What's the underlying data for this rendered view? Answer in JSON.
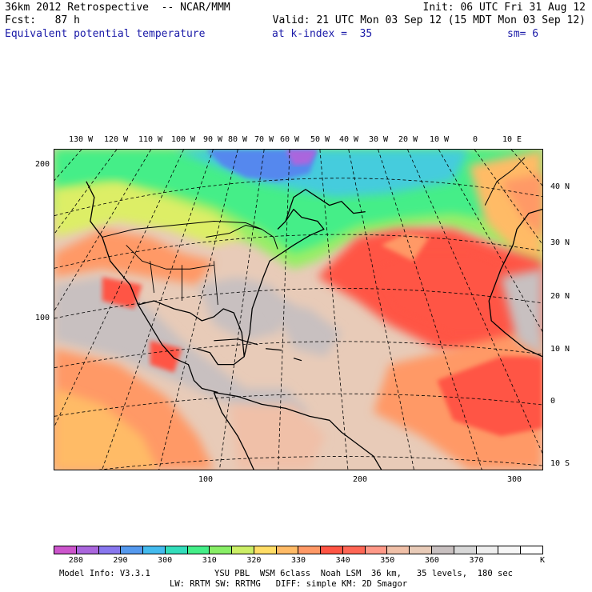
{
  "header": {
    "line1_left": "36km 2012 Retrospective  -- NCAR/MMM",
    "line1_right": "Init: 06 UTC Fri 31 Aug 12",
    "line2_fcst": "Fcst:   87 h",
    "line2_valid": "Valid: 21 UTC Mon 03 Sep 12 (15 MDT Mon 03 Sep 12)",
    "line3_field": "Equivalent potential temperature",
    "line3_level": "at k-index =  35",
    "line3_sm": "sm= 6"
  },
  "axes": {
    "top_lon_labels": [
      "130 W",
      "120 W",
      "110 W",
      "100 W",
      "90 W",
      "80 W",
      "70 W",
      "60 W",
      "50 W",
      "40 W",
      "30 W",
      "20 W",
      "10 W",
      "0",
      "10 E"
    ],
    "right_lat_labels": [
      "40 N",
      "30 N",
      "20 N",
      "10 N",
      "0",
      "10 S"
    ],
    "left_grid_labels": [
      "200",
      "100"
    ],
    "bottom_grid_labels": [
      "100",
      "200",
      "300"
    ]
  },
  "colorbar": {
    "colors": [
      "#cc55cc",
      "#aa66dd",
      "#8877ee",
      "#5599ee",
      "#44bbee",
      "#33ddbb",
      "#44ee88",
      "#88ee66",
      "#ccee66",
      "#ffdd66",
      "#ffbb66",
      "#ff9966",
      "#ff5544",
      "#ff6655",
      "#ff9988",
      "#f0c0a8",
      "#e8cbb8",
      "#c8c0c0",
      "#d8d8d8",
      "#eeeeee",
      "#f6f6f6",
      "#ffffff"
    ],
    "tick_labels": [
      "280",
      "290",
      "300",
      "310",
      "320",
      "330",
      "340",
      "350",
      "360",
      "370"
    ],
    "unit": "K"
  },
  "footer": {
    "line1_left": "Model Info: V3.3.1",
    "line1_right": "YSU PBL  WSM 6class  Noah LSM  36 km,   35 levels,  180 sec",
    "line2": "LW: RRTM SW: RRTMG   DIFF: simple KM: 2D Smagor"
  },
  "map_colors": {
    "purple": "#aa66dd",
    "blue": "#5588ee",
    "cyan": "#44ccdd",
    "green": "#44ee88",
    "lightgreen": "#99ee66",
    "yellow": "#ddee66",
    "orange": "#ffbb66",
    "salmon": "#ff9966",
    "red": "#ff5544",
    "peach": "#f0c0a8",
    "tan": "#e8cbb8",
    "gray": "#c8c0c0"
  }
}
